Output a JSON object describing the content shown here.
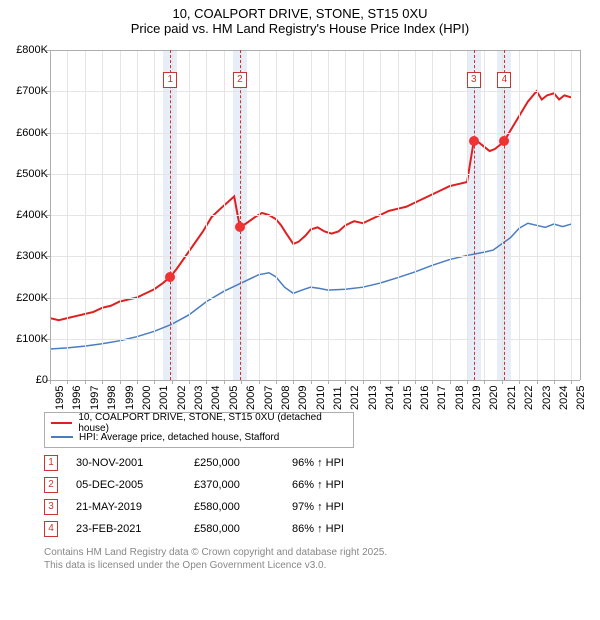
{
  "title": "10, COALPORT DRIVE, STONE, ST15 0XU",
  "subtitle": "Price paid vs. HM Land Registry's House Price Index (HPI)",
  "chart": {
    "type": "line",
    "xlim": [
      1995,
      2025.5
    ],
    "ylim": [
      0,
      800
    ],
    "ytick_step": 100,
    "ytick_labels": [
      "£0",
      "£100K",
      "£200K",
      "£300K",
      "£400K",
      "£500K",
      "£600K",
      "£700K",
      "£800K"
    ],
    "xticks": [
      1995,
      1996,
      1997,
      1998,
      1999,
      2000,
      2001,
      2002,
      2003,
      2004,
      2005,
      2006,
      2007,
      2008,
      2009,
      2010,
      2011,
      2012,
      2013,
      2014,
      2015,
      2016,
      2017,
      2018,
      2019,
      2020,
      2021,
      2022,
      2023,
      2024,
      2025
    ],
    "background_color": "#ffffff",
    "grid_color": "#e5e5e5",
    "axis_color": "#adadad",
    "marker_band_color": "#e8eef7",
    "marker_line_color": "#cc3333",
    "series": [
      {
        "name": "10, COALPORT DRIVE, STONE, ST15 0XU (detached house)",
        "color": "#e02020",
        "line_width": 2,
        "data": [
          [
            1995,
            150
          ],
          [
            1995.5,
            145
          ],
          [
            1996,
            150
          ],
          [
            1996.5,
            155
          ],
          [
            1997,
            160
          ],
          [
            1997.5,
            165
          ],
          [
            1998,
            175
          ],
          [
            1998.5,
            180
          ],
          [
            1999,
            190
          ],
          [
            1999.5,
            195
          ],
          [
            2000,
            200
          ],
          [
            2000.5,
            210
          ],
          [
            2001,
            220
          ],
          [
            2001.5,
            235
          ],
          [
            2001.92,
            250
          ],
          [
            2002.3,
            270
          ],
          [
            2002.8,
            300
          ],
          [
            2003.3,
            330
          ],
          [
            2003.8,
            360
          ],
          [
            2004.3,
            395
          ],
          [
            2004.8,
            415
          ],
          [
            2005.2,
            430
          ],
          [
            2005.6,
            445
          ],
          [
            2005.93,
            370
          ],
          [
            2006.3,
            380
          ],
          [
            2006.8,
            395
          ],
          [
            2007.2,
            405
          ],
          [
            2007.6,
            400
          ],
          [
            2008,
            390
          ],
          [
            2008.3,
            375
          ],
          [
            2008.6,
            355
          ],
          [
            2009,
            330
          ],
          [
            2009.3,
            335
          ],
          [
            2009.7,
            350
          ],
          [
            2010,
            365
          ],
          [
            2010.4,
            370
          ],
          [
            2010.8,
            360
          ],
          [
            2011.2,
            355
          ],
          [
            2011.6,
            360
          ],
          [
            2012,
            375
          ],
          [
            2012.5,
            385
          ],
          [
            2013,
            380
          ],
          [
            2013.5,
            390
          ],
          [
            2014,
            400
          ],
          [
            2014.5,
            410
          ],
          [
            2015,
            415
          ],
          [
            2015.5,
            420
          ],
          [
            2016,
            430
          ],
          [
            2016.5,
            440
          ],
          [
            2017,
            450
          ],
          [
            2017.5,
            460
          ],
          [
            2018,
            470
          ],
          [
            2018.5,
            475
          ],
          [
            2019,
            480
          ],
          [
            2019.39,
            580
          ],
          [
            2019.7,
            575
          ],
          [
            2020,
            565
          ],
          [
            2020.3,
            555
          ],
          [
            2020.6,
            560
          ],
          [
            2020.9,
            570
          ],
          [
            2021.15,
            580
          ],
          [
            2021.5,
            605
          ],
          [
            2022,
            640
          ],
          [
            2022.5,
            675
          ],
          [
            2023,
            700
          ],
          [
            2023.3,
            680
          ],
          [
            2023.6,
            690
          ],
          [
            2024,
            695
          ],
          [
            2024.3,
            680
          ],
          [
            2024.6,
            690
          ],
          [
            2025,
            685
          ]
        ]
      },
      {
        "name": "HPI: Average price, detached house, Stafford",
        "color": "#4a7dc0",
        "line_width": 1.5,
        "data": [
          [
            1995,
            75
          ],
          [
            1996,
            78
          ],
          [
            1997,
            82
          ],
          [
            1998,
            88
          ],
          [
            1999,
            95
          ],
          [
            2000,
            105
          ],
          [
            2001,
            118
          ],
          [
            2002,
            135
          ],
          [
            2003,
            158
          ],
          [
            2004,
            190
          ],
          [
            2005,
            215
          ],
          [
            2006,
            235
          ],
          [
            2007,
            255
          ],
          [
            2007.6,
            260
          ],
          [
            2008,
            250
          ],
          [
            2008.5,
            225
          ],
          [
            2009,
            210
          ],
          [
            2009.5,
            218
          ],
          [
            2010,
            225
          ],
          [
            2010.5,
            222
          ],
          [
            2011,
            218
          ],
          [
            2012,
            220
          ],
          [
            2013,
            225
          ],
          [
            2014,
            235
          ],
          [
            2015,
            248
          ],
          [
            2016,
            262
          ],
          [
            2017,
            278
          ],
          [
            2018,
            292
          ],
          [
            2019,
            302
          ],
          [
            2020,
            310
          ],
          [
            2020.5,
            315
          ],
          [
            2021,
            330
          ],
          [
            2021.5,
            345
          ],
          [
            2022,
            368
          ],
          [
            2022.5,
            380
          ],
          [
            2023,
            375
          ],
          [
            2023.5,
            370
          ],
          [
            2024,
            378
          ],
          [
            2024.5,
            372
          ],
          [
            2025,
            378
          ]
        ]
      }
    ],
    "markers": [
      {
        "n": "1",
        "date": "30-NOV-2001",
        "x": 2001.92,
        "y": 250,
        "price": "£250,000",
        "hpi": "96% ↑ HPI"
      },
      {
        "n": "2",
        "date": "05-DEC-2005",
        "x": 2005.93,
        "y": 370,
        "price": "£370,000",
        "hpi": "66% ↑ HPI"
      },
      {
        "n": "3",
        "date": "21-MAY-2019",
        "x": 2019.39,
        "y": 580,
        "price": "£580,000",
        "hpi": "97% ↑ HPI"
      },
      {
        "n": "4",
        "date": "23-FEB-2021",
        "x": 2021.15,
        "y": 580,
        "price": "£580,000",
        "hpi": "86% ↑ HPI"
      }
    ]
  },
  "legend": {
    "items": [
      {
        "color": "#e02020",
        "label": "10, COALPORT DRIVE, STONE, ST15 0XU (detached house)"
      },
      {
        "color": "#4a7dc0",
        "label": "HPI: Average price, detached house, Stafford"
      }
    ]
  },
  "footer": {
    "line1": "Contains HM Land Registry data © Crown copyright and database right 2025.",
    "line2": "This data is licensed under the Open Government Licence v3.0."
  }
}
